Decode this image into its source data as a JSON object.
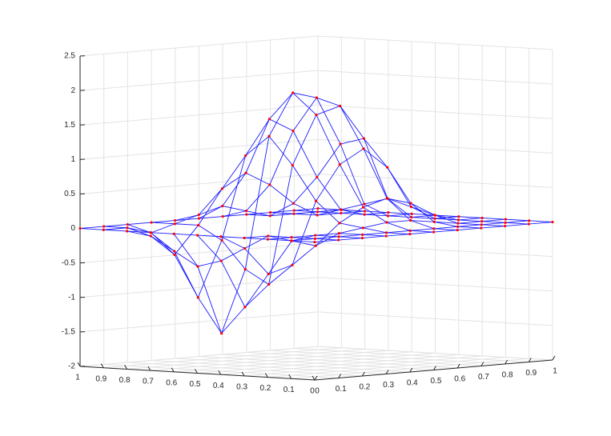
{
  "chart_data": {
    "type": "surface3d",
    "x": [
      0,
      0.1,
      0.2,
      0.3,
      0.4,
      0.5,
      0.6,
      0.7,
      0.8,
      0.9,
      1
    ],
    "y": [
      0,
      0.1,
      0.2,
      0.3,
      0.4,
      0.5,
      0.6,
      0.7,
      0.8,
      0.9,
      1
    ],
    "z": [
      [
        0,
        0,
        0,
        0,
        0,
        0,
        0,
        0,
        0,
        0,
        0
      ],
      [
        0,
        0,
        0,
        0,
        0,
        0,
        0,
        0,
        0,
        0,
        0
      ],
      [
        0,
        0,
        0,
        0,
        0.05,
        0.1,
        0.1,
        0.05,
        0,
        0,
        0
      ],
      [
        0,
        0,
        -0.1,
        -0.2,
        0.1,
        0.3,
        0.4,
        0.3,
        0.1,
        0,
        0
      ],
      [
        0,
        -0.2,
        -0.6,
        -0.5,
        0.4,
        0.9,
        1.1,
        0.8,
        0.2,
        0,
        0
      ],
      [
        0,
        -0.4,
        -1.1,
        -0.8,
        0.9,
        1.6,
        1.7,
        1.2,
        0.3,
        0,
        0
      ],
      [
        0,
        -0.5,
        -1.5,
        -0.6,
        1.3,
        1.9,
        1.8,
        1.1,
        0.2,
        0,
        0
      ],
      [
        0,
        -0.3,
        -1.0,
        -0.2,
        1.0,
        1.5,
        1.3,
        0.6,
        0.1,
        0,
        0
      ],
      [
        0,
        -0.1,
        -0.4,
        0,
        0.5,
        0.7,
        0.5,
        0.2,
        0,
        0,
        0
      ],
      [
        0,
        0,
        -0.1,
        0,
        0.1,
        0.2,
        0.1,
        0,
        0,
        0,
        0
      ],
      [
        0,
        0,
        0,
        0,
        0,
        0,
        0,
        0,
        0,
        0,
        0
      ]
    ],
    "mesh_color": "#1a1aff",
    "marker_color": "#ff0000",
    "xlim": [
      0,
      1
    ],
    "ylim": [
      0,
      1
    ],
    "zlim": [
      -2,
      2.5
    ],
    "xticks": [
      0,
      0.1,
      0.2,
      0.3,
      0.4,
      0.5,
      0.6,
      0.7,
      0.8,
      0.9,
      1
    ],
    "yticks": [
      0,
      0.1,
      0.2,
      0.3,
      0.4,
      0.5,
      0.6,
      0.7,
      0.8,
      0.9,
      1
    ],
    "zticks": [
      -2,
      -1.5,
      -1,
      -0.5,
      0,
      0.5,
      1,
      1.5,
      2,
      2.5
    ],
    "grid": true
  }
}
